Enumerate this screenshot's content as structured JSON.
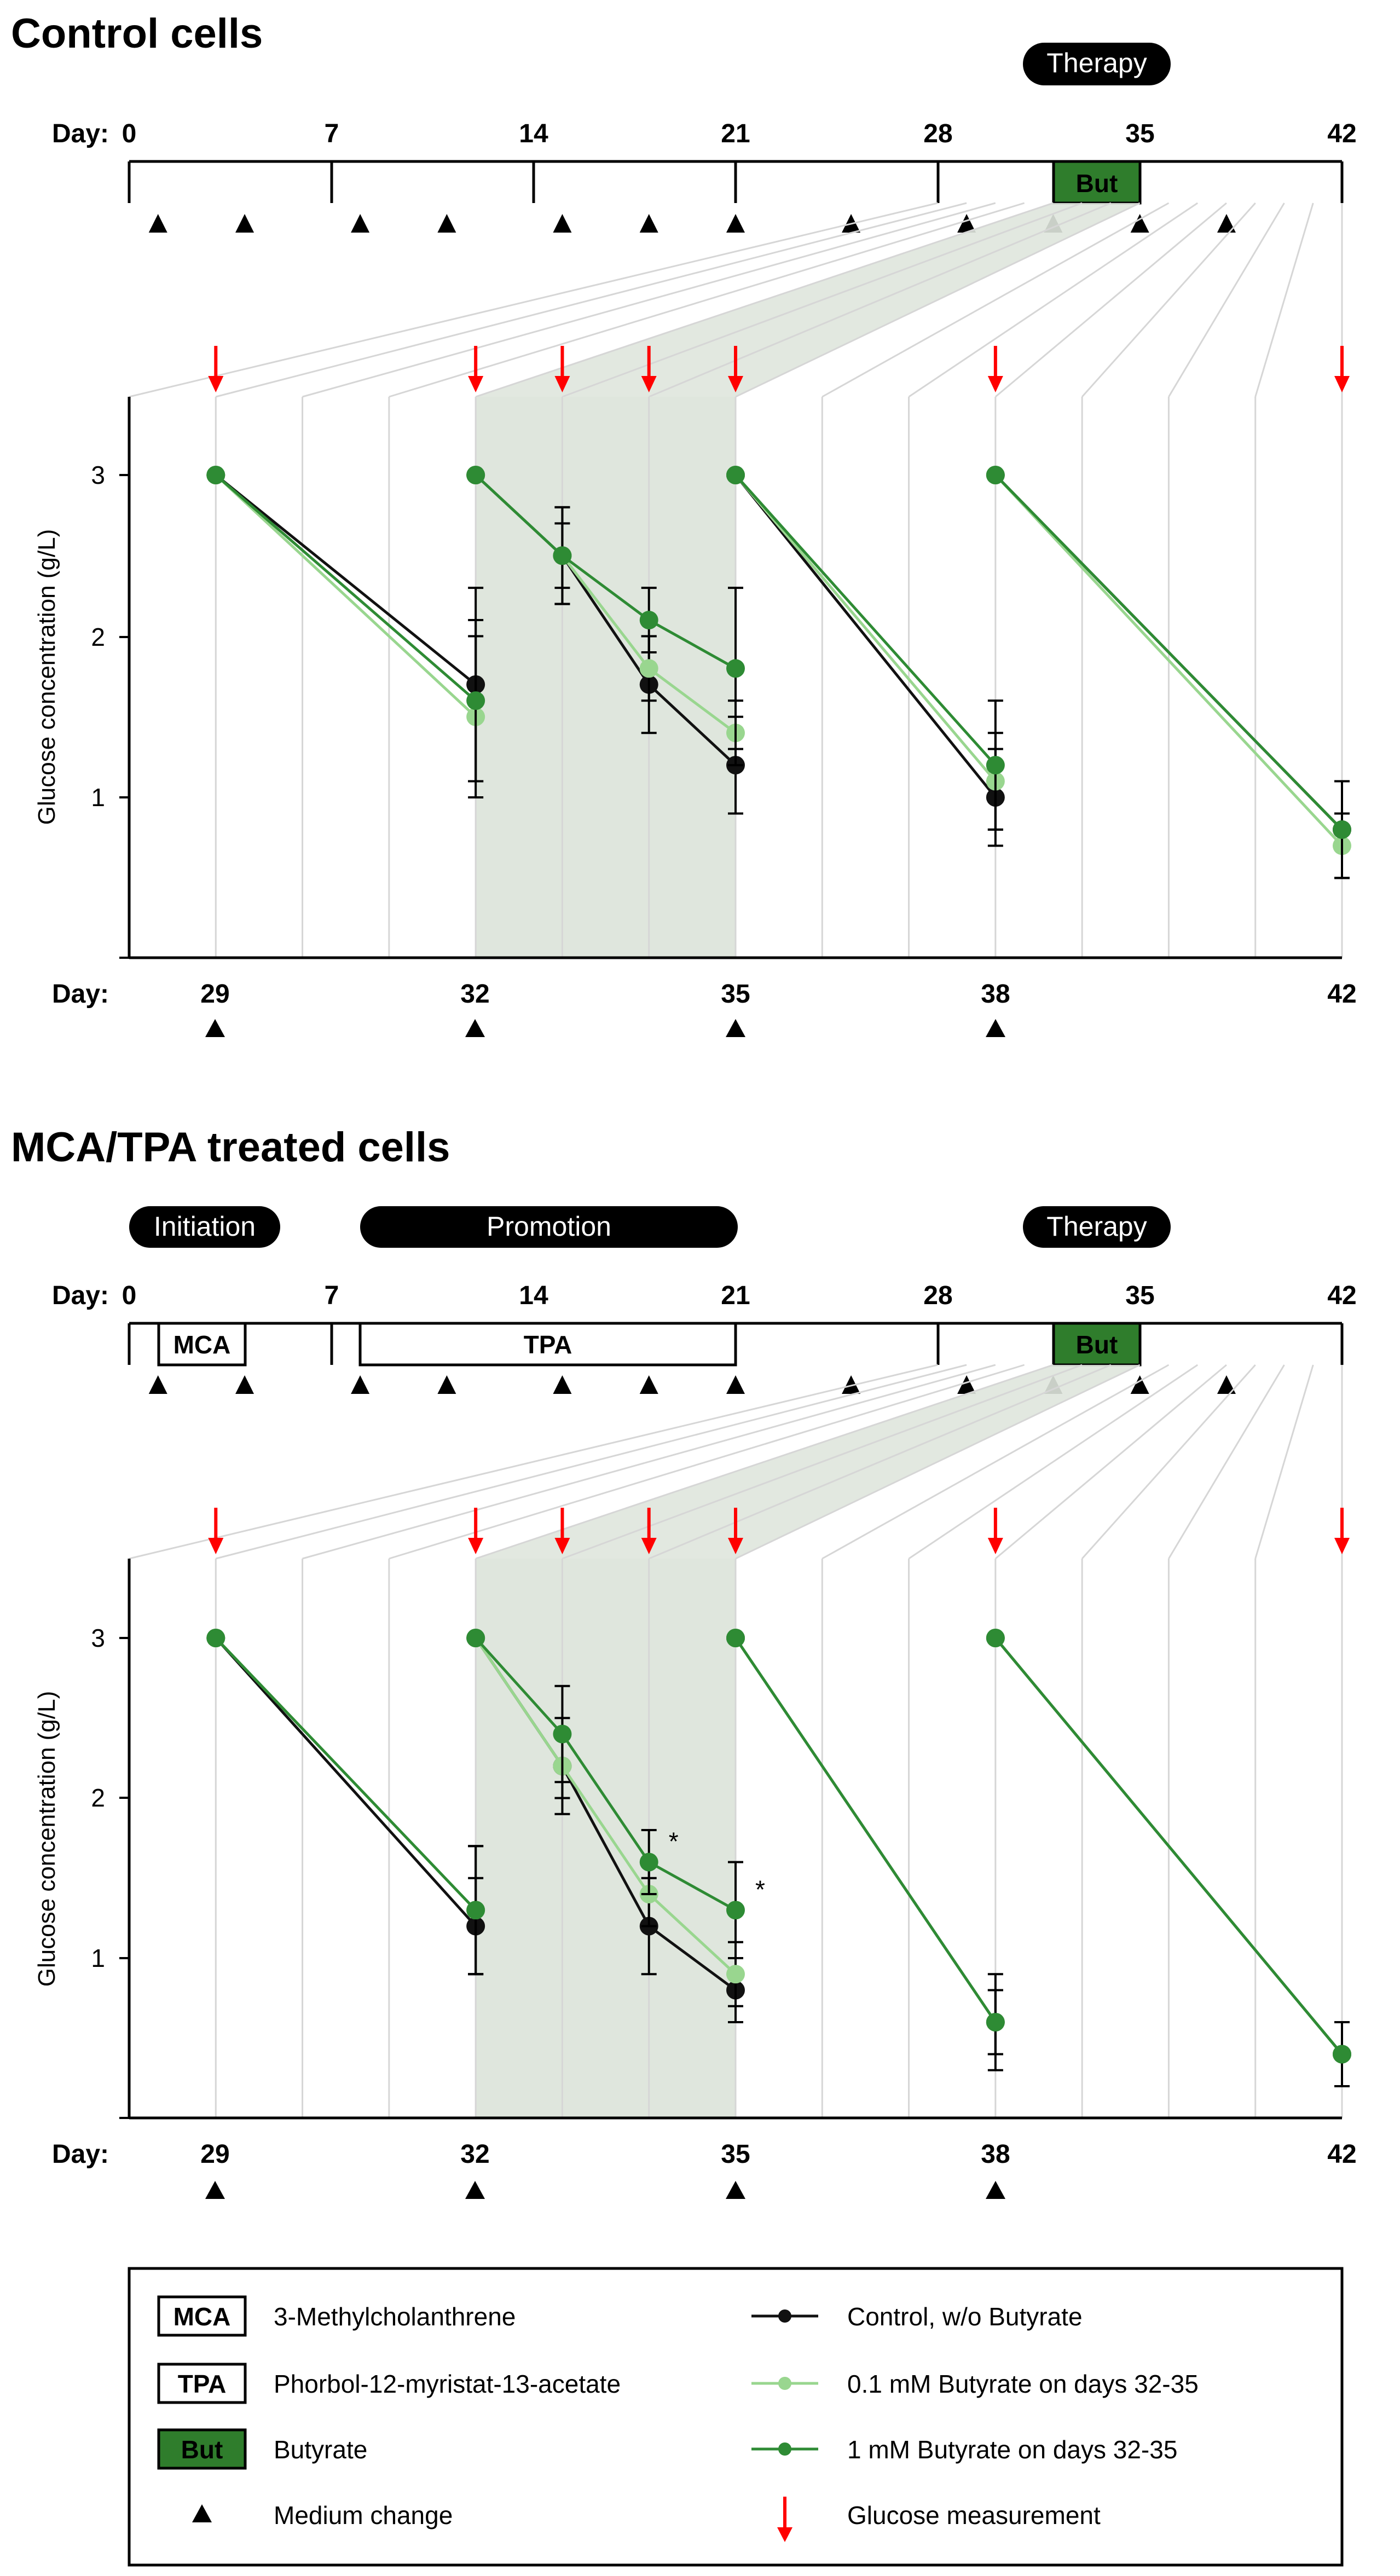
{
  "colors": {
    "control": "#111111",
    "low": "#99d68f",
    "high": "#2e8b34",
    "arrow": "#ff0000",
    "shade": "#dfe6dd",
    "grid": "#d6d6d6",
    "butFill": "#2f7d2c",
    "pill": "#000000"
  },
  "panels": [
    {
      "title": "Control cells",
      "phases": [
        {
          "label": "Therapy"
        }
      ],
      "boxes": [
        {
          "label": "But",
          "filled": true
        }
      ],
      "timeline_ticks": [
        "0",
        "7",
        "14",
        "21",
        "28",
        "35",
        "42"
      ],
      "timeline_day_label": "Day:",
      "medium_change_days": [
        1,
        4,
        8,
        11,
        15,
        18,
        21,
        25,
        29,
        32,
        35,
        38
      ],
      "zoom_day_label": "Day:",
      "zoom_ticks": [
        "29",
        "32",
        "35",
        "38",
        "42"
      ],
      "stars": []
    },
    {
      "title": "MCA/TPA treated cells",
      "phases": [
        {
          "label": "Initiation"
        },
        {
          "label": "Promotion"
        },
        {
          "label": "Therapy"
        }
      ],
      "boxes": [
        {
          "label": "MCA",
          "filled": false
        },
        {
          "label": "TPA",
          "filled": false
        },
        {
          "label": "But",
          "filled": true
        }
      ],
      "timeline_ticks": [
        "0",
        "7",
        "14",
        "21",
        "28",
        "35",
        "42"
      ],
      "timeline_day_label": "Day:",
      "medium_change_days": [
        1,
        4,
        8,
        11,
        15,
        18,
        21,
        25,
        29,
        32,
        35,
        38
      ],
      "zoom_day_label": "Day:",
      "zoom_ticks": [
        "29",
        "32",
        "35",
        "38",
        "42"
      ],
      "stars": [
        {
          "label": "*",
          "day": 34,
          "value": 1.6
        },
        {
          "label": "*",
          "day": 35,
          "value": 1.3
        }
      ]
    }
  ],
  "chart_data": [
    {
      "type": "line",
      "title": "Control cells",
      "xlabel": "Day",
      "ylabel": "Glucose concentration (g/L)",
      "xlim": [
        28,
        42
      ],
      "ylim": [
        0,
        3.5
      ],
      "yticks": [
        "1",
        "2",
        "3"
      ],
      "measurement_days": [
        29,
        32,
        33,
        34,
        35,
        38,
        42
      ],
      "series": [
        {
          "name": "Control, w/o Butyrate",
          "key": "control",
          "segments": [
            {
              "x": [
                29,
                32
              ],
              "y": [
                3,
                1.7
              ],
              "err": [
                0,
                0.6
              ]
            },
            {
              "x": [
                32,
                33,
                34,
                35
              ],
              "y": [
                3,
                2.5,
                1.7,
                1.2
              ],
              "err": [
                0,
                0.3,
                0.3,
                0.3
              ]
            },
            {
              "x": [
                35,
                38
              ],
              "y": [
                3,
                1.0
              ],
              "err": [
                0,
                0.3
              ]
            },
            {
              "x": [
                38,
                42
              ],
              "y": [
                3,
                0.8
              ],
              "err": [
                0,
                0.1
              ]
            }
          ]
        },
        {
          "name": "0.1 mM Butyrate on days 32-35",
          "key": "low",
          "segments": [
            {
              "x": [
                29,
                32
              ],
              "y": [
                3,
                1.5
              ],
              "err": [
                0,
                0.5
              ]
            },
            {
              "x": [
                32,
                33,
                34,
                35
              ],
              "y": [
                3,
                2.5,
                1.8,
                1.4
              ],
              "err": [
                0,
                0.2,
                0.2,
                0.2
              ]
            },
            {
              "x": [
                35,
                38
              ],
              "y": [
                3,
                1.1
              ],
              "err": [
                0,
                0.3
              ]
            },
            {
              "x": [
                38,
                42
              ],
              "y": [
                3,
                0.7
              ],
              "err": [
                0,
                0.2
              ]
            }
          ]
        },
        {
          "name": "1 mM Butyrate on days 32-35",
          "key": "high",
          "segments": [
            {
              "x": [
                29,
                32
              ],
              "y": [
                3,
                1.6
              ],
              "err": [
                0,
                0.5
              ]
            },
            {
              "x": [
                32,
                33,
                34,
                35
              ],
              "y": [
                3,
                2.5,
                2.1,
                1.8
              ],
              "err": [
                0,
                0.3,
                0.2,
                0.5
              ]
            },
            {
              "x": [
                35,
                38
              ],
              "y": [
                3,
                1.2
              ],
              "err": [
                0,
                0.4
              ]
            },
            {
              "x": [
                38,
                42
              ],
              "y": [
                3,
                0.8
              ],
              "err": [
                0,
                0.3
              ]
            }
          ]
        }
      ]
    },
    {
      "type": "line",
      "title": "MCA/TPA treated cells",
      "xlabel": "Day",
      "ylabel": "Glucose concentration (g/L)",
      "xlim": [
        28,
        42
      ],
      "ylim": [
        0,
        3.5
      ],
      "yticks": [
        "1",
        "2",
        "3"
      ],
      "measurement_days": [
        29,
        32,
        33,
        34,
        35,
        38,
        42
      ],
      "series": [
        {
          "name": "Control, w/o Butyrate",
          "key": "control",
          "segments": [
            {
              "x": [
                29,
                32
              ],
              "y": [
                3,
                1.2
              ],
              "err": [
                0,
                0.3
              ]
            },
            {
              "x": [
                32,
                33,
                34,
                35
              ],
              "y": [
                3,
                2.2,
                1.2,
                0.8
              ],
              "err": [
                0,
                0.3,
                0.3,
                0.2
              ]
            },
            {
              "x": [
                35,
                38
              ],
              "y": [
                3,
                0.6
              ],
              "err": [
                0,
                0.2
              ]
            },
            {
              "x": [
                38,
                42
              ],
              "y": [
                3,
                0.4
              ],
              "err": [
                0,
                0.2
              ]
            }
          ]
        },
        {
          "name": "0.1 mM Butyrate on days 32-35",
          "key": "low",
          "segments": [
            {
              "x": [
                29,
                32
              ],
              "y": [
                3,
                1.3
              ],
              "err": [
                0,
                0.4
              ]
            },
            {
              "x": [
                32,
                33,
                34,
                35
              ],
              "y": [
                3,
                2.2,
                1.4,
                0.9
              ],
              "err": [
                0,
                0.2,
                0.2,
                0.2
              ]
            },
            {
              "x": [
                35,
                38
              ],
              "y": [
                3,
                0.6
              ],
              "err": [
                0,
                0.2
              ]
            },
            {
              "x": [
                38,
                42
              ],
              "y": [
                3,
                0.4
              ],
              "err": [
                0,
                0.2
              ]
            }
          ]
        },
        {
          "name": "1 mM Butyrate on days 32-35",
          "key": "high",
          "segments": [
            {
              "x": [
                29,
                32
              ],
              "y": [
                3,
                1.3
              ],
              "err": [
                0,
                0.4
              ]
            },
            {
              "x": [
                32,
                33,
                34,
                35
              ],
              "y": [
                3,
                2.4,
                1.6,
                1.3
              ],
              "err": [
                0,
                0.3,
                0.2,
                0.3
              ]
            },
            {
              "x": [
                35,
                38
              ],
              "y": [
                3,
                0.6
              ],
              "err": [
                0,
                0.3
              ]
            },
            {
              "x": [
                38,
                42
              ],
              "y": [
                3,
                0.4
              ],
              "err": [
                0,
                0.2
              ]
            }
          ]
        }
      ]
    }
  ],
  "legend": {
    "abbreviations": [
      {
        "label": "MCA",
        "text": "3-Methylcholanthrene",
        "filled": false
      },
      {
        "label": "TPA",
        "text": "Phorbol-12-myristat-13-acetate",
        "filled": false
      },
      {
        "label": "But",
        "text": "Butyrate",
        "filled": true
      }
    ],
    "medium_change": "Medium change",
    "series": [
      {
        "key": "control",
        "text": "Control, w/o Butyrate"
      },
      {
        "key": "low",
        "text": "0.1 mM Butyrate on days 32-35"
      },
      {
        "key": "high",
        "text": "1 mM Butyrate on days 32-35"
      }
    ],
    "glucose": "Glucose measurement"
  }
}
